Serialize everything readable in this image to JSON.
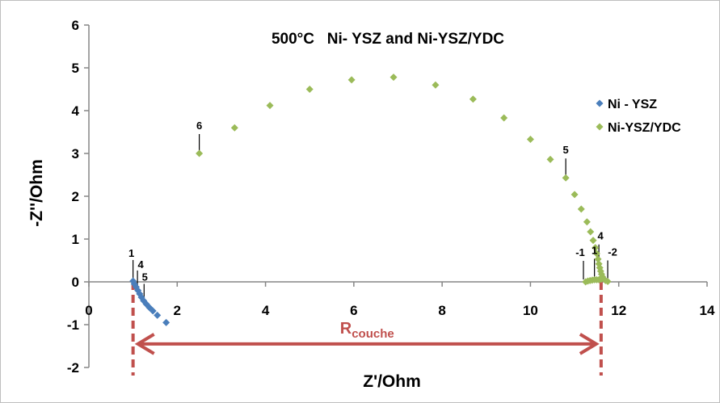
{
  "chart_data": {
    "type": "scatter",
    "title": "500°C   Ni- YSZ and Ni-YSZ/YDC",
    "xlabel": "Z'/Ohm",
    "ylabel": "-Z''/Ohm",
    "xlim": [
      0,
      14
    ],
    "ylim": [
      -2,
      6
    ],
    "x_ticks": [
      0,
      2,
      4,
      6,
      8,
      10,
      12,
      14
    ],
    "y_ticks": [
      -2,
      -1,
      0,
      1,
      2,
      3,
      4,
      5,
      6
    ],
    "x_tick_labels": [
      "0",
      "2",
      "4",
      "6",
      "8",
      "10",
      "12",
      "14"
    ],
    "y_tick_labels": [
      "-2",
      "-1",
      "0",
      "1",
      "2",
      "3",
      "4",
      "5",
      "6"
    ],
    "grid": false,
    "legend_position": "right",
    "series": [
      {
        "name": "Ni - YSZ",
        "color": "#4a7ebb",
        "marker": "diamond",
        "points": [
          [
            1.0,
            0.02
          ],
          [
            1.03,
            -0.05
          ],
          [
            1.07,
            -0.12
          ],
          [
            1.11,
            -0.2
          ],
          [
            1.15,
            -0.28
          ],
          [
            1.19,
            -0.36
          ],
          [
            1.24,
            -0.44
          ],
          [
            1.3,
            -0.52
          ],
          [
            1.37,
            -0.6
          ],
          [
            1.45,
            -0.68
          ],
          [
            1.55,
            -0.78
          ],
          [
            1.75,
            -0.95
          ]
        ]
      },
      {
        "name": "Ni-YSZ/YDC",
        "color": "#9bbb59",
        "marker": "diamond",
        "points": [
          [
            2.5,
            3.0
          ],
          [
            3.3,
            3.6
          ],
          [
            4.1,
            4.12
          ],
          [
            5.0,
            4.5
          ],
          [
            5.95,
            4.72
          ],
          [
            6.9,
            4.78
          ],
          [
            7.85,
            4.6
          ],
          [
            8.7,
            4.27
          ],
          [
            9.4,
            3.83
          ],
          [
            10.0,
            3.33
          ],
          [
            10.45,
            2.86
          ],
          [
            10.8,
            2.43
          ],
          [
            11.0,
            2.04
          ],
          [
            11.15,
            1.7
          ],
          [
            11.28,
            1.4
          ],
          [
            11.36,
            1.17
          ],
          [
            11.42,
            0.97
          ],
          [
            11.47,
            0.8
          ],
          [
            11.5,
            0.66
          ],
          [
            11.53,
            0.53
          ],
          [
            11.55,
            0.42
          ],
          [
            11.57,
            0.33
          ],
          [
            11.59,
            0.25
          ],
          [
            11.61,
            0.18
          ],
          [
            11.63,
            0.12
          ],
          [
            11.66,
            0.07
          ],
          [
            11.7,
            0.03
          ],
          [
            11.75,
            0.01
          ],
          [
            11.25,
            0.0
          ],
          [
            11.3,
            0.02
          ],
          [
            11.35,
            0.03
          ],
          [
            11.4,
            0.04
          ],
          [
            11.45,
            0.05
          ],
          [
            11.5,
            0.05
          ],
          [
            11.55,
            0.05
          ],
          [
            11.6,
            0.06
          ]
        ]
      }
    ],
    "annotations": [
      {
        "text": "6",
        "x": 2.5,
        "y": 3.0,
        "series": "Ni-YSZ/YDC"
      },
      {
        "text": "5",
        "x": 10.8,
        "y": 2.43,
        "series": "Ni-YSZ/YDC"
      },
      {
        "text": "4",
        "x": 11.55,
        "y": 0.42,
        "series": "Ni-YSZ/YDC"
      },
      {
        "text": "-1",
        "x": 11.2,
        "y": 0.0,
        "series": "Ni-YSZ/YDC"
      },
      {
        "text": "1",
        "x": 11.45,
        "y": 0.05,
        "series": "Ni-YSZ/YDC"
      },
      {
        "text": "-2",
        "x": 11.75,
        "y": 0.01,
        "series": "Ni-YSZ/YDC"
      },
      {
        "text": "1",
        "x": 1.0,
        "y": 0.02,
        "series": "Ni - YSZ"
      },
      {
        "text": "4",
        "x": 1.1,
        "y": -0.15,
        "series": "Ni - YSZ"
      },
      {
        "text": "5",
        "x": 1.25,
        "y": -0.5,
        "series": "Ni - YSZ"
      }
    ],
    "dimension_label": {
      "main": "R",
      "sub": "couche",
      "x_from": 1.0,
      "x_to": 11.6,
      "y": -1.45,
      "color": "#c0504d"
    }
  }
}
